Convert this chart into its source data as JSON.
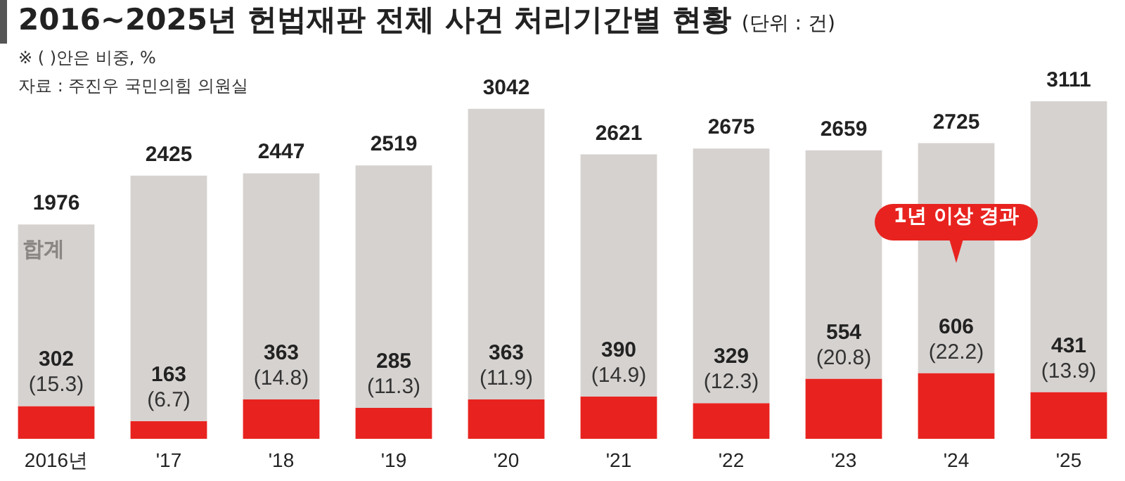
{
  "chart_data": {
    "type": "bar",
    "title": "2016~2025년 헌법재판 전체 사건 처리기간별 현황",
    "subtitle": "(단위 : 건)",
    "annotations": [
      "※ ( )안은 비중, %",
      "자료 : 주진우 국민의힘 의원실"
    ],
    "categories": [
      "2016년",
      "'17",
      "'18",
      "'19",
      "'20",
      "'21",
      "'22",
      "'23",
      "'24",
      "'25"
    ],
    "stacked": true,
    "legend": false,
    "series": [
      {
        "name": "1년 이상 경과",
        "color": "#e8231f",
        "values": [
          302,
          163,
          363,
          285,
          363,
          390,
          329,
          554,
          606,
          431
        ],
        "value_labels": [
          "302\n(15.3)",
          "163\n(6.7)",
          "363\n(14.8)",
          "285\n(11.3)",
          "363\n(11.9)",
          "390\n(14.9)",
          "329\n(12.3)",
          "554\n(20.8)",
          "606\n(22.2)",
          "431\n(13.9)"
        ]
      },
      {
        "name": "합계",
        "color": "#d6d2d0",
        "values": [
          1674,
          2262,
          2084,
          2234,
          2679,
          2231,
          2346,
          2105,
          2119,
          2680
        ]
      }
    ],
    "totals": [
      "1976",
      "2425",
      "2447",
      "2519",
      "3042",
      "2621",
      "2675",
      "2659",
      "2725",
      "3111"
    ]
  }
}
